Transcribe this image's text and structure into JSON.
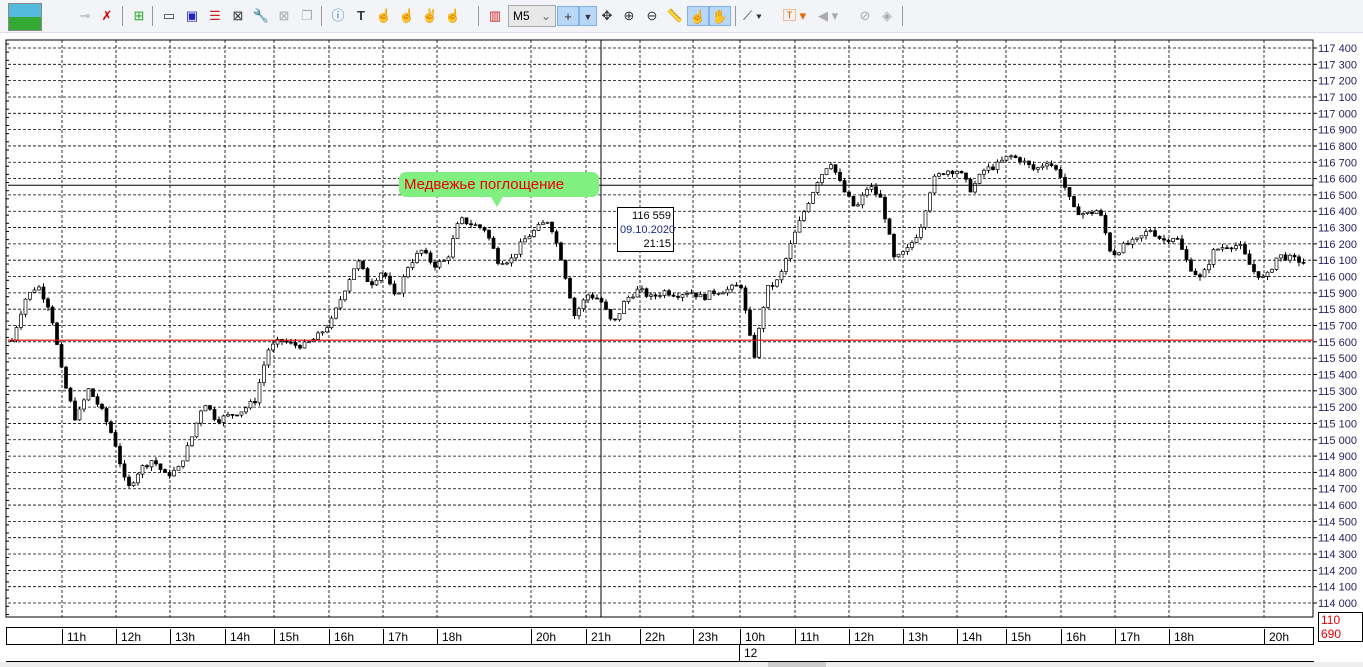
{
  "toolbar": {
    "timeframe": "M5",
    "buttons": [
      "app-logo",
      "key",
      "key-delete",
      "add-chart",
      "chart-window",
      "chart-window-2",
      "chart-list",
      "chart-template",
      "chart-properties",
      "close-chart",
      "chart-copy",
      "alert",
      "text",
      "hand-1",
      "hand-2",
      "hand-3",
      "hand-4",
      "bar-chart",
      "crosshair",
      "move",
      "zoom-in",
      "zoom-out",
      "ruler",
      "finger",
      "hand",
      "trendline",
      "text-label",
      "sound",
      "hide",
      "layers"
    ]
  },
  "chart_data": {
    "type": "candlestick",
    "ylim": [
      114000,
      117400
    ],
    "y_ticks": [
      "117 400",
      "117 300",
      "117 200",
      "117 100",
      "117 000",
      "116 900",
      "116 800",
      "116 700",
      "116 600",
      "116 500",
      "116 400",
      "116 300",
      "116 200",
      "116 100",
      "116 000",
      "115 900",
      "115 800",
      "115 700",
      "115 600",
      "115 500",
      "115 400",
      "115 300",
      "115 200",
      "115 100",
      "115 000",
      "114 900",
      "114 800",
      "114 700",
      "114 600",
      "114 500",
      "114 400",
      "114 300",
      "114 200",
      "114 100",
      "114 000"
    ],
    "x_ticks": [
      "11h",
      "12h",
      "13h",
      "14h",
      "15h",
      "16h",
      "17h",
      "18h",
      "20h",
      "21h",
      "22h",
      "23h",
      "10h",
      "11h",
      "12h",
      "13h",
      "14h",
      "15h",
      "16h",
      "17h",
      "18h",
      "20h"
    ],
    "date_label": "12",
    "closes": [
      115610,
      115860,
      115950,
      115800,
      115370,
      115120,
      115310,
      115180,
      115000,
      114690,
      114820,
      114880,
      114780,
      114820,
      115000,
      115240,
      115120,
      115150,
      115180,
      115240,
      115550,
      115610,
      115580,
      115580,
      115640,
      115730,
      115920,
      116100,
      115950,
      116040,
      115860,
      116070,
      116160,
      116070,
      116100,
      116350,
      116320,
      116290,
      116100,
      116100,
      116220,
      116290,
      116350,
      116100,
      115760,
      115890,
      115860,
      115700,
      115860,
      115920,
      115870,
      115910,
      115890,
      115910,
      115870,
      115910,
      115920,
      115950,
      115490,
      115920,
      115980,
      116220,
      116410,
      116590,
      116710,
      116530,
      116410,
      116560,
      116470,
      116100,
      116160,
      116290,
      116590,
      116650,
      116650,
      116530,
      116650,
      116680,
      116740,
      116710,
      116650,
      116710,
      116620,
      116410,
      116380,
      116410,
      116130,
      116190,
      116220,
      116290,
      116220,
      116250,
      116070,
      115980,
      116160,
      116190,
      116190,
      116040,
      115980,
      116130,
      116110,
      116090
    ],
    "red_level": 115610,
    "crosshair": {
      "price": "116 559",
      "date": "09.10.2020",
      "time": "21:15"
    },
    "annotation": "Медвежье поглощение",
    "current_price": "110 690",
    "colors": {
      "candle": "#000000",
      "level": "#e00000",
      "annotation_bg": "#80f080",
      "annotation_text": "#e00000",
      "axis_text": "#2a1a5e"
    }
  }
}
